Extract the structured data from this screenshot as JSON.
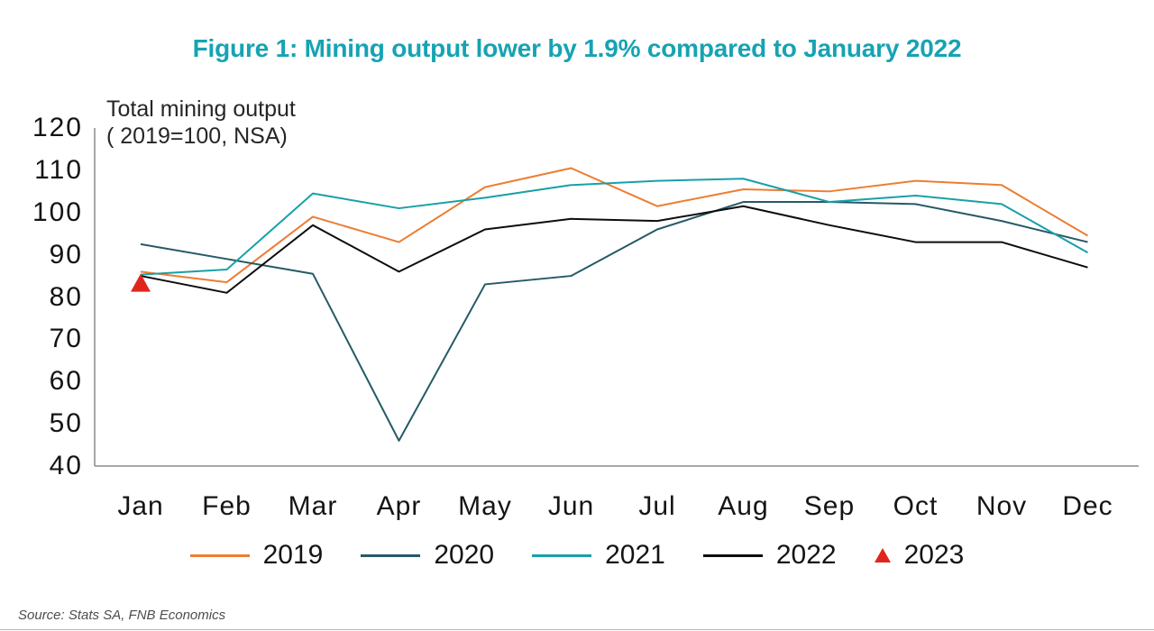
{
  "title": {
    "text": "Figure 1: Mining output lower by 1.9% compared to January 2022",
    "color": "#16a3b3"
  },
  "axis_note": {
    "line1": "Total mining output",
    "line2": "( 2019=100, NSA)"
  },
  "source": {
    "text": "Source: Stats SA, FNB Economics"
  },
  "chart_data": {
    "type": "line",
    "title": "Figure 1: Mining output lower by 1.9% compared to January 2022",
    "subtitle": "Total mining output ( 2019=100, NSA)",
    "categories": [
      "Jan",
      "Feb",
      "Mar",
      "Apr",
      "May",
      "Jun",
      "Jul",
      "Aug",
      "Sep",
      "Oct",
      "Nov",
      "Dec"
    ],
    "ylim": [
      40,
      120
    ],
    "ytick_step": 10,
    "grid": false,
    "legend_position": "bottom",
    "axis_color": "#8c8c8c",
    "series": [
      {
        "name": "2019",
        "type": "line",
        "color": "#ed7d31",
        "values": [
          86,
          83.5,
          99,
          93,
          106,
          110.5,
          101.5,
          105.5,
          105,
          107.5,
          106.5,
          94.5
        ]
      },
      {
        "name": "2020",
        "type": "line",
        "color": "#255a66",
        "values": [
          92.5,
          89,
          85.5,
          46,
          83,
          85,
          96,
          102.5,
          102.5,
          102,
          98,
          93
        ]
      },
      {
        "name": "2021",
        "type": "line",
        "color": "#18a0a8",
        "values": [
          85.3,
          86.5,
          104.5,
          101,
          103.5,
          106.5,
          107.5,
          108,
          102.5,
          104,
          102,
          90.5
        ]
      },
      {
        "name": "2022",
        "type": "line",
        "color": "#0d0d0d",
        "values": [
          85,
          81,
          97,
          86,
          96,
          98.5,
          98,
          101.5,
          97,
          93,
          93,
          87
        ]
      },
      {
        "name": "2023",
        "type": "triangle-marker",
        "color": "#e0261c",
        "values": [
          83.4
        ]
      }
    ]
  }
}
